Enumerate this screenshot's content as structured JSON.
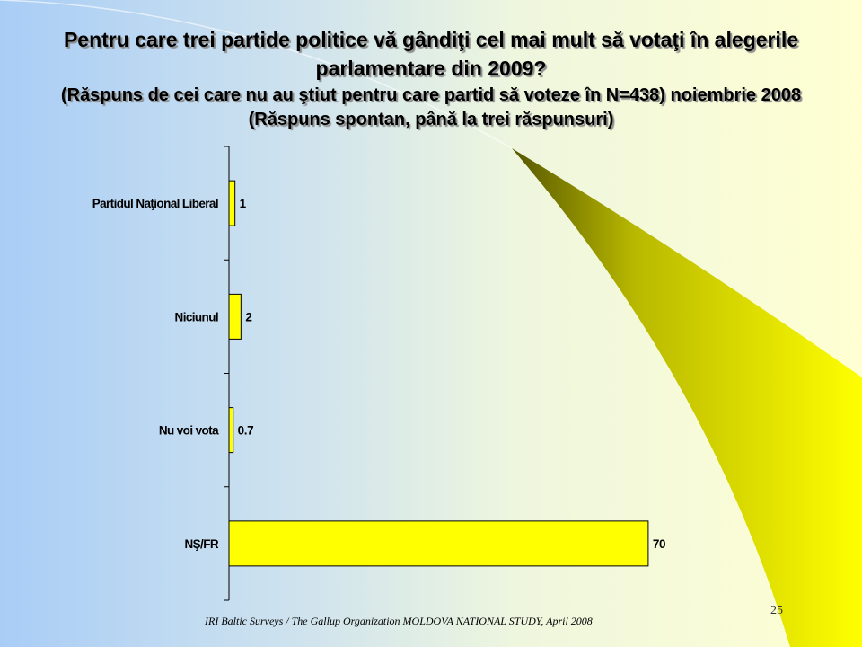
{
  "title": "Pentru care trei partide politice vă gândiţi cel mai mult să votaţi în alegerile parlamentare din 2009?",
  "subtitle": "(Răspuns de cei care nu au ştiut pentru care partid să voteze în N=438) noiembrie 2008 (Răspuns spontan, până la trei răspunsuri)",
  "footer": "IRI  Baltic Surveys / The Gallup Organization  MOLDOVA NATIONAL STUDY, April 2008",
  "page_number": "25",
  "colors": {
    "bar_fill": "#ffff00",
    "bar_stroke": "#000000",
    "accent": "#ffff00"
  },
  "chart_data": {
    "type": "bar",
    "orientation": "horizontal",
    "categories": [
      "Partidul Naţional Liberal",
      "Niciunul",
      "Nu voi vota",
      "NŞ/FR"
    ],
    "values": [
      1,
      2,
      0.7,
      70
    ],
    "value_labels": [
      "1",
      "2",
      "0.7",
      "70"
    ],
    "xlim": [
      0,
      100
    ],
    "grid": false,
    "legend": "none"
  }
}
